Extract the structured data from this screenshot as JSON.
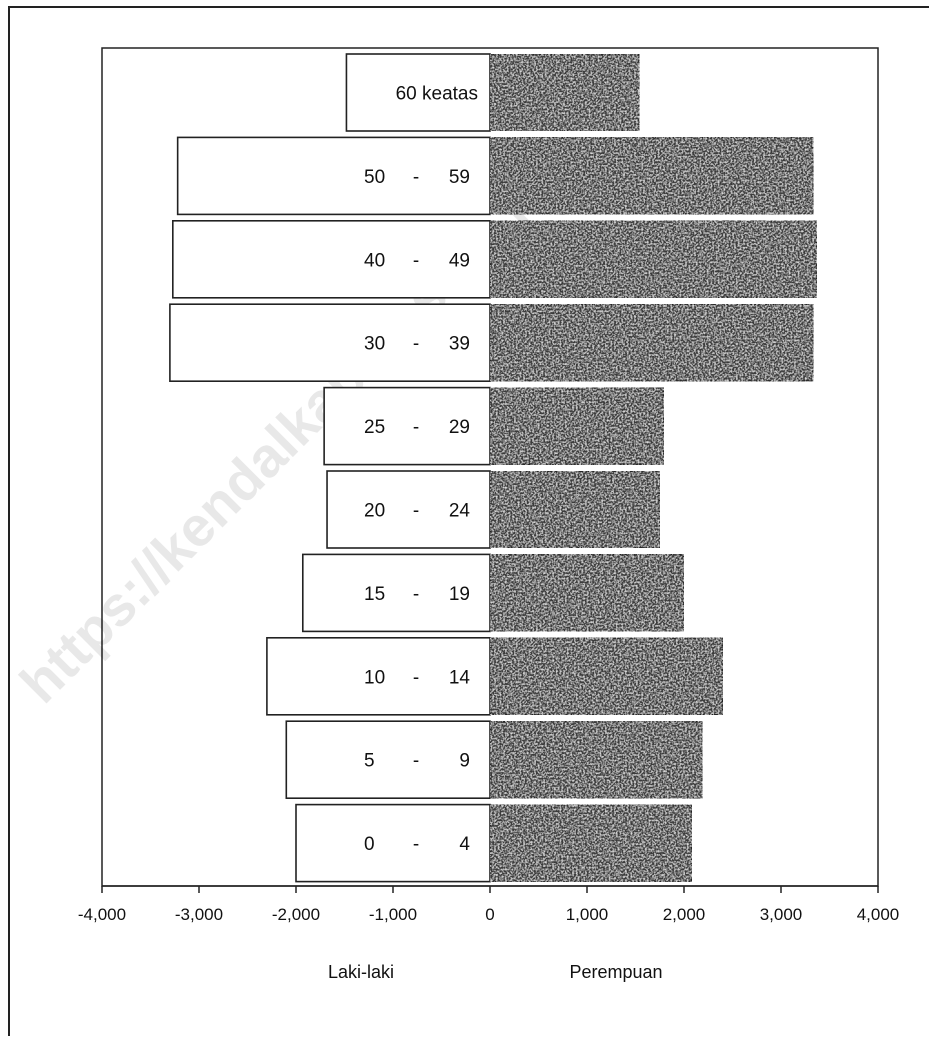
{
  "watermark": "https://kendalkab.bps.go.id",
  "chart_data": {
    "type": "bar",
    "orientation": "horizontal",
    "categories": [
      "0 - 4",
      "5 - 9",
      "10 - 14",
      "15 - 19",
      "20 - 24",
      "25 - 29",
      "30 - 39",
      "40 - 49",
      "50 - 59",
      "60 keatas"
    ],
    "category_labels": [
      [
        "0",
        "-",
        "4"
      ],
      [
        "5",
        "-",
        "9"
      ],
      [
        "10",
        "-",
        "14"
      ],
      [
        "15",
        "-",
        "19"
      ],
      [
        "20",
        "-",
        "24"
      ],
      [
        "25",
        "-",
        "29"
      ],
      [
        "30",
        "-",
        "39"
      ],
      [
        "40",
        "-",
        "49"
      ],
      [
        "50",
        "-",
        "59"
      ],
      [
        "60 keatas"
      ]
    ],
    "series": [
      {
        "name": "Laki-laki",
        "values": [
          -2000,
          -2100,
          -2300,
          -1930,
          -1680,
          -1710,
          -3300,
          -3270,
          -3220,
          -1480
        ],
        "color": "#ffffff"
      },
      {
        "name": "Perempuan",
        "values": [
          2080,
          2190,
          2400,
          2000,
          1750,
          1790,
          3330,
          3370,
          3330,
          1540
        ],
        "color": "#3a3a3a"
      }
    ],
    "xlim": [
      -4000,
      4000
    ],
    "xticks": [
      "-4,000",
      "-3,000",
      "-2,000",
      "-1,000",
      "0",
      "1,000",
      "2,000",
      "3,000",
      "4,000"
    ],
    "xtick_values": [
      -4000,
      -3000,
      -2000,
      -1000,
      0,
      1000,
      2000,
      3000,
      4000
    ],
    "legend": [
      "Laki-laki",
      "Perempuan"
    ],
    "legend_position": "bottom",
    "grid": false
  }
}
